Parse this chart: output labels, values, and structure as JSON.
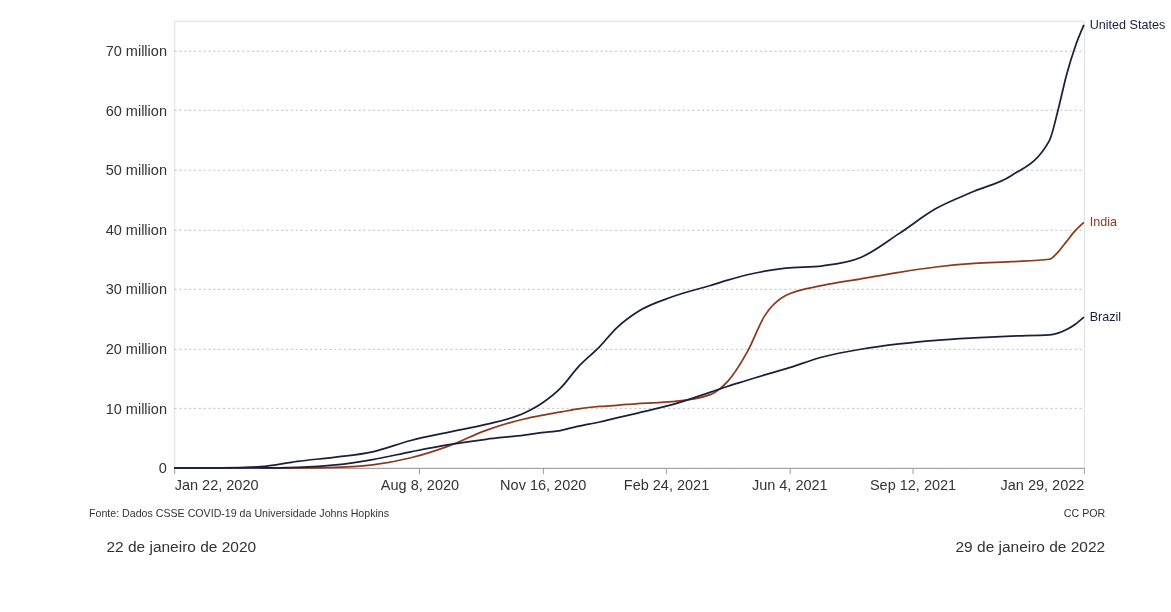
{
  "chart_data": {
    "type": "line",
    "x": [
      "2020-01-22",
      "2020-03-01",
      "2020-04-01",
      "2020-05-01",
      "2020-06-01",
      "2020-07-01",
      "2020-08-01",
      "2020-09-01",
      "2020-10-01",
      "2020-11-01",
      "2020-11-15",
      "2020-12-01",
      "2020-12-15",
      "2021-01-01",
      "2021-01-15",
      "2021-02-01",
      "2021-03-01",
      "2021-04-01",
      "2021-04-15",
      "2021-05-01",
      "2021-05-15",
      "2021-06-01",
      "2021-07-01",
      "2021-08-01",
      "2021-09-01",
      "2021-10-01",
      "2021-11-01",
      "2021-12-01",
      "2022-01-01",
      "2022-01-08",
      "2022-01-15",
      "2022-01-22",
      "2022-01-29"
    ],
    "series": [
      {
        "name": "United States",
        "color": "#1c1f3b",
        "values": [
          0,
          0,
          200000,
          1100000,
          1800000,
          2700000,
          4600000,
          6000000,
          7300000,
          9200000,
          10800000,
          13500000,
          17000000,
          20300000,
          23500000,
          26200000,
          28700000,
          30600000,
          31500000,
          32400000,
          33000000,
          33500000,
          33900000,
          35300000,
          39300000,
          43500000,
          46400000,
          49000000,
          54900000,
          60000000,
          66000000,
          70700000,
          74300000
        ]
      },
      {
        "name": "India",
        "color": "#8b3a1e",
        "values": [
          null,
          null,
          0,
          0,
          100000,
          500000,
          1700000,
          3700000,
          6300000,
          8200000,
          8800000,
          9400000,
          9900000,
          10300000,
          10500000,
          10800000,
          11100000,
          12300000,
          14500000,
          19500000,
          25500000,
          28900000,
          30600000,
          31700000,
          32800000,
          33700000,
          34300000,
          34600000,
          35000000,
          36200000,
          38000000,
          39800000,
          41200000
        ]
      },
      {
        "name": "Brazil",
        "color": "#1c1f3b",
        "values": [
          0,
          0,
          0,
          100000,
          500000,
          1400000,
          2700000,
          3900000,
          4800000,
          5500000,
          5900000,
          6300000,
          7000000,
          7700000,
          8400000,
          9200000,
          10600000,
          12700000,
          13700000,
          14700000,
          15600000,
          16600000,
          18600000,
          19900000,
          20800000,
          21400000,
          21800000,
          22100000,
          22300000,
          22600000,
          23200000,
          24100000,
          25300000
        ]
      }
    ],
    "xlim": [
      "2020-01-22",
      "2022-01-29"
    ],
    "xticks": [
      {
        "value": "2020-01-22",
        "label": "Jan 22, 2020"
      },
      {
        "value": "2020-08-08",
        "label": "Aug 8, 2020"
      },
      {
        "value": "2020-11-16",
        "label": "Nov 16, 2020"
      },
      {
        "value": "2021-02-24",
        "label": "Feb 24, 2021"
      },
      {
        "value": "2021-06-04",
        "label": "Jun 4, 2021"
      },
      {
        "value": "2021-09-12",
        "label": "Sep 12, 2021"
      },
      {
        "value": "2022-01-29",
        "label": "Jan 29, 2022"
      }
    ],
    "ylim": [
      0,
      75000000
    ],
    "yticks": [
      {
        "value": 0,
        "label": "0"
      },
      {
        "value": 10000000,
        "label": "10 million"
      },
      {
        "value": 20000000,
        "label": "20 million"
      },
      {
        "value": 30000000,
        "label": "30 million"
      },
      {
        "value": 40000000,
        "label": "40 million"
      },
      {
        "value": 50000000,
        "label": "50 million"
      },
      {
        "value": 60000000,
        "label": "60 million"
      },
      {
        "value": 70000000,
        "label": "70 million"
      }
    ],
    "grid": "y",
    "legend": false,
    "marker": "none",
    "line_style": "solid",
    "annotations": [
      "Fonte: Dados CSSE COVID-19 da Universidade Johns Hopkins",
      "CC POR",
      "22 de janeiro de 2020",
      "29 de janeiro de 2022"
    ]
  }
}
